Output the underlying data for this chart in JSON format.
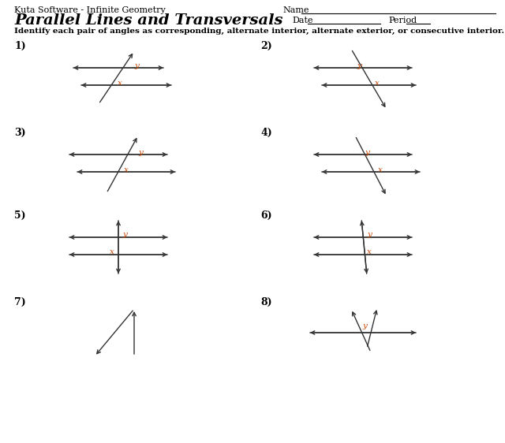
{
  "title_left": "Kuta Software - Infinite Geometry",
  "title_main": "Parallel Lines and Transversals",
  "name_label": "Name",
  "date_label": "Date",
  "period_label": "Period",
  "instructions": "Identify each pair of angles as corresponding, alternate interior, alternate exterior, or consecutive interior.",
  "bg_color": "#ffffff",
  "text_color": "#000000",
  "line_color": "#333333",
  "label_color": "#cc4400",
  "problems": [
    {
      "num": "1)",
      "col": 0,
      "row": 0
    },
    {
      "num": "2)",
      "col": 1,
      "row": 0
    },
    {
      "num": "3)",
      "col": 0,
      "row": 1
    },
    {
      "num": "4)",
      "col": 1,
      "row": 1
    },
    {
      "num": "5)",
      "col": 0,
      "row": 2
    },
    {
      "num": "6)",
      "col": 1,
      "row": 2
    },
    {
      "num": "7)",
      "col": 0,
      "row": 3
    },
    {
      "num": "8)",
      "col": 1,
      "row": 3
    }
  ]
}
